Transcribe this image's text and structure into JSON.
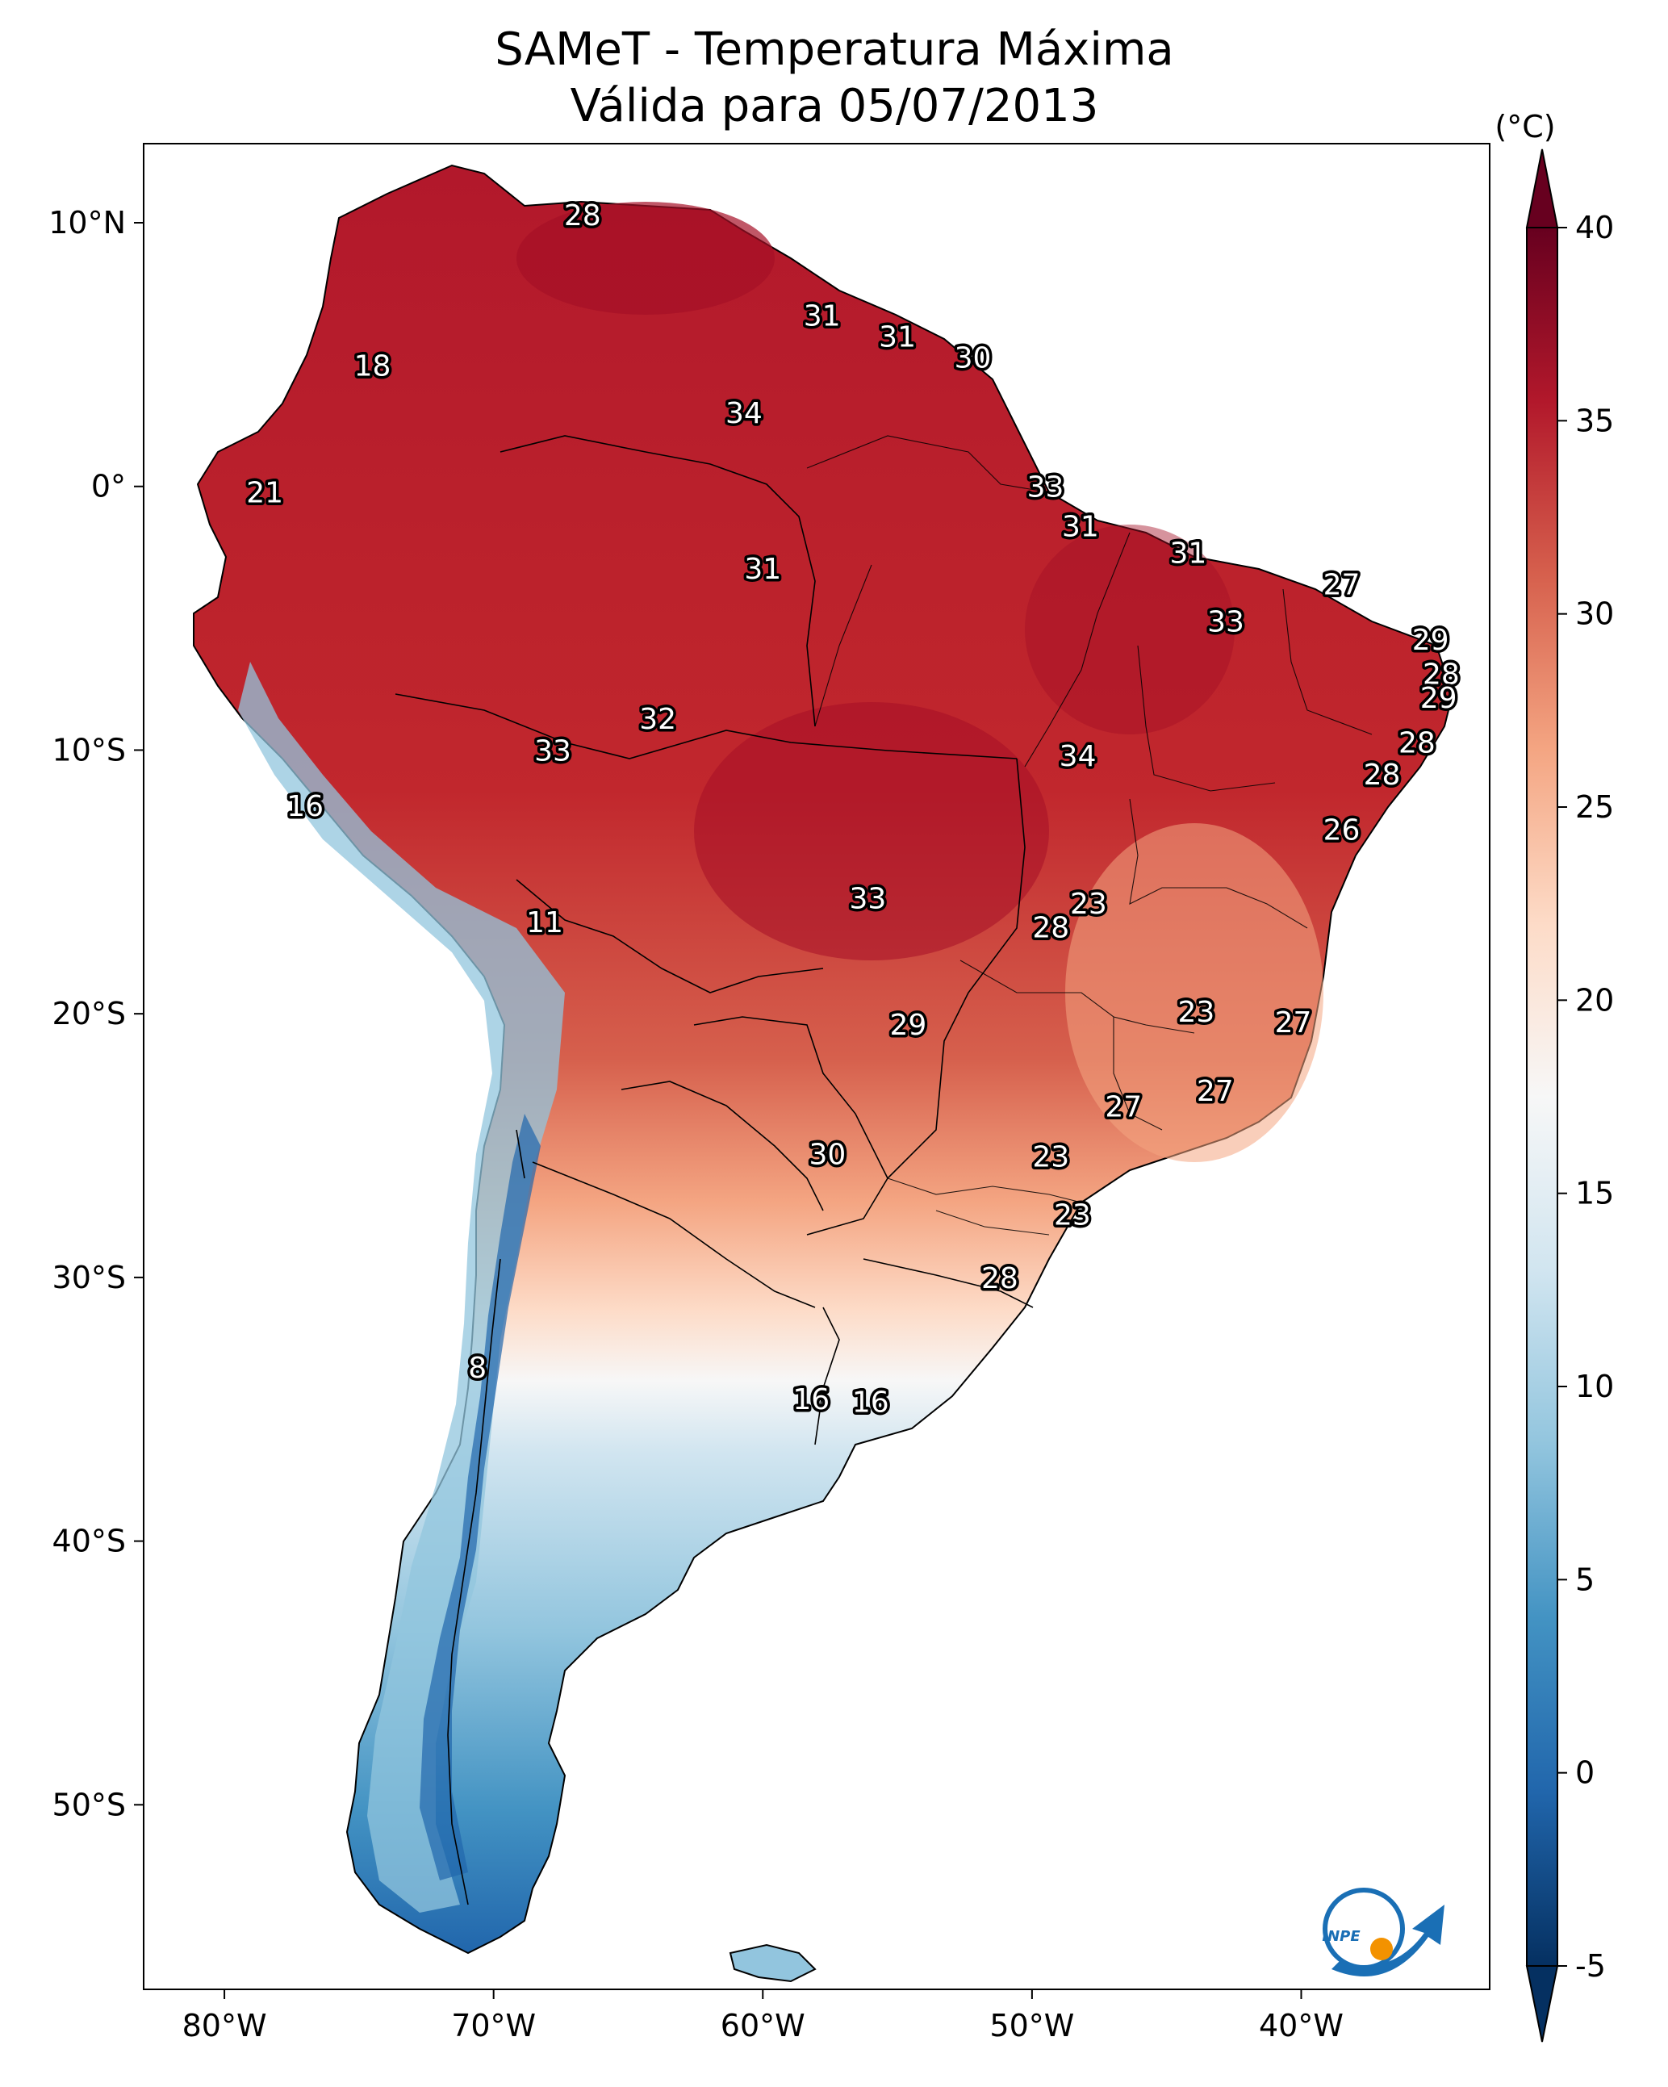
{
  "title": {
    "line1": "SAMeT - Temperatura Máxima",
    "line2": "Válida para 05/07/2013"
  },
  "map": {
    "lon_range": [
      -83,
      -33
    ],
    "lat_range": [
      -57,
      13
    ],
    "lat_ticks": [
      {
        "value": 10,
        "label": "10°N"
      },
      {
        "value": 0,
        "label": "0°"
      },
      {
        "value": -10,
        "label": "10°S"
      },
      {
        "value": -20,
        "label": "20°S"
      },
      {
        "value": -30,
        "label": "30°S"
      },
      {
        "value": -40,
        "label": "40°S"
      },
      {
        "value": -50,
        "label": "50°S"
      }
    ],
    "lon_ticks": [
      {
        "value": -80,
        "label": "80°W"
      },
      {
        "value": -70,
        "label": "70°W"
      },
      {
        "value": -60,
        "label": "60°W"
      },
      {
        "value": -50,
        "label": "50°W"
      },
      {
        "value": -40,
        "label": "40°W"
      }
    ],
    "station_values": [
      {
        "lon": -66.7,
        "lat": 10.3,
        "label": "28"
      },
      {
        "lon": -57.8,
        "lat": 6.5,
        "label": "31"
      },
      {
        "lon": -55.0,
        "lat": 5.7,
        "label": "31"
      },
      {
        "lon": -52.2,
        "lat": 4.9,
        "label": "30"
      },
      {
        "lon": -74.5,
        "lat": 4.6,
        "label": "18"
      },
      {
        "lon": -60.7,
        "lat": 2.8,
        "label": "34"
      },
      {
        "lon": -78.5,
        "lat": -0.2,
        "label": "21"
      },
      {
        "lon": -49.5,
        "lat": 0.0,
        "label": "33"
      },
      {
        "lon": -48.2,
        "lat": -1.5,
        "label": "31"
      },
      {
        "lon": -60.0,
        "lat": -3.1,
        "label": "31"
      },
      {
        "lon": -44.2,
        "lat": -2.5,
        "label": "31"
      },
      {
        "lon": -38.5,
        "lat": -3.7,
        "label": "27"
      },
      {
        "lon": -42.8,
        "lat": -5.1,
        "label": "33"
      },
      {
        "lon": -35.2,
        "lat": -5.8,
        "label": "29"
      },
      {
        "lon": -34.8,
        "lat": -7.1,
        "label": "28"
      },
      {
        "lon": -34.9,
        "lat": -8.0,
        "label": "29"
      },
      {
        "lon": -63.9,
        "lat": -8.8,
        "label": "32"
      },
      {
        "lon": -67.8,
        "lat": -10.0,
        "label": "33"
      },
      {
        "lon": -48.3,
        "lat": -10.2,
        "label": "34"
      },
      {
        "lon": -35.7,
        "lat": -9.7,
        "label": "28"
      },
      {
        "lon": -37.0,
        "lat": -10.9,
        "label": "28"
      },
      {
        "lon": -77.0,
        "lat": -12.1,
        "label": "16"
      },
      {
        "lon": -38.5,
        "lat": -13.0,
        "label": "26"
      },
      {
        "lon": -56.1,
        "lat": -15.6,
        "label": "33"
      },
      {
        "lon": -47.9,
        "lat": -15.8,
        "label": "23"
      },
      {
        "lon": -49.3,
        "lat": -16.7,
        "label": "28"
      },
      {
        "lon": -68.1,
        "lat": -16.5,
        "label": "11"
      },
      {
        "lon": -43.9,
        "lat": -19.9,
        "label": "23"
      },
      {
        "lon": -40.3,
        "lat": -20.3,
        "label": "27"
      },
      {
        "lon": -54.6,
        "lat": -20.4,
        "label": "29"
      },
      {
        "lon": -43.2,
        "lat": -22.9,
        "label": "27"
      },
      {
        "lon": -46.6,
        "lat": -23.5,
        "label": "27"
      },
      {
        "lon": -49.3,
        "lat": -25.4,
        "label": "23"
      },
      {
        "lon": -57.6,
        "lat": -25.3,
        "label": "30"
      },
      {
        "lon": -48.5,
        "lat": -27.6,
        "label": "23"
      },
      {
        "lon": -51.2,
        "lat": -30.0,
        "label": "28"
      },
      {
        "lon": -70.6,
        "lat": -33.4,
        "label": "8"
      },
      {
        "lon": -58.2,
        "lat": -34.6,
        "label": "16"
      },
      {
        "lon": -56.0,
        "lat": -34.7,
        "label": "16"
      }
    ]
  },
  "colorbar": {
    "unit": "(°C)",
    "min": -5,
    "max": 40,
    "colormap": "RdBu_r",
    "ticks": [
      {
        "value": 40,
        "label": "40"
      },
      {
        "value": 35,
        "label": "35"
      },
      {
        "value": 30,
        "label": "30"
      },
      {
        "value": 25,
        "label": "25"
      },
      {
        "value": 20,
        "label": "20"
      },
      {
        "value": 15,
        "label": "15"
      },
      {
        "value": 10,
        "label": "10"
      },
      {
        "value": 5,
        "label": "5"
      },
      {
        "value": 0,
        "label": "0"
      },
      {
        "value": -5,
        "label": "-5"
      }
    ],
    "colors": [
      "#053061",
      "#2166ac",
      "#4393c3",
      "#92c5de",
      "#d1e5f0",
      "#f7f7f7",
      "#fddbc7",
      "#f4a582",
      "#d6604d",
      "#b2182b",
      "#67001f"
    ]
  },
  "logo": {
    "text": "INPE",
    "blue": "#1a6fb5",
    "orange": "#f39200"
  }
}
